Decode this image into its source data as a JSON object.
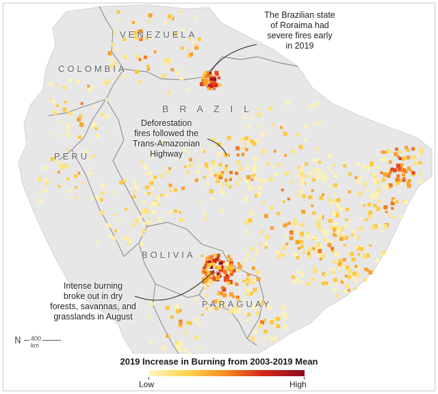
{
  "map": {
    "countries": {
      "venezuela": "VENEZUELA",
      "colombia": "COLOMBIA",
      "brazil": "B R A Z I L",
      "peru": "PERU",
      "bolivia": "BOLIVIA",
      "paraguay": "PARAGUAY"
    },
    "annotations": {
      "roraima": [
        "The Brazilian state",
        "of Roraima had",
        "severe fires early",
        "in 2019"
      ],
      "highway": [
        "Deforestation",
        "fires followed the",
        "Trans-Amazonian",
        "Highway"
      ],
      "dry_forests": [
        "Intense burning",
        "broke out in dry",
        "forests, savannas, and",
        "grasslands in August"
      ]
    },
    "scale_label": "400 km",
    "north_symbol": "N",
    "colors": {
      "land": "#e9e9e9",
      "ocean": "#ffffff",
      "border": "#6f6f6f",
      "low": "#fff6c2",
      "high": "#8c0b23"
    }
  },
  "legend": {
    "title": "2019 Increase in Burning from 2003-2019 Mean",
    "low_label": "Low",
    "high_label": "High"
  }
}
